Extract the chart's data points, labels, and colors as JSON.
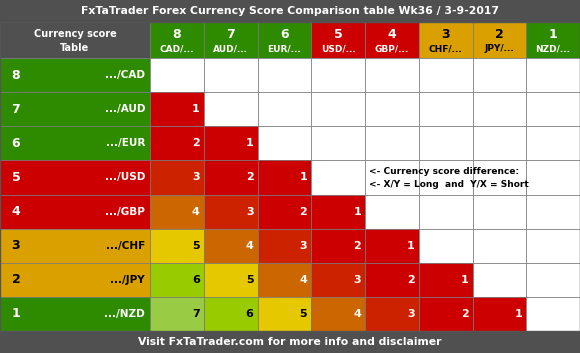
{
  "title": "FxTaTrader Forex Currency Score Comparison table Wk36 / 3-9-2017",
  "footer": "Visit FxTaTrader.com for more info and disclaimer",
  "col_scores": [
    8,
    7,
    6,
    5,
    4,
    3,
    2,
    1
  ],
  "col_currencies": [
    "CAD/...",
    "AUD/...",
    "EUR/...",
    "USD/...",
    "GBP/...",
    "CHF/...",
    "JPY/...",
    "NZD/..."
  ],
  "row_scores": [
    8,
    7,
    6,
    5,
    4,
    3,
    2,
    1
  ],
  "row_currencies": [
    ".../CAD",
    ".../AUD",
    ".../EUR",
    ".../USD",
    ".../GBP",
    ".../CHF",
    ".../JPY",
    ".../NZD"
  ],
  "score_bg": {
    "8": "#2e8b00",
    "7": "#2e8b00",
    "6": "#2e8b00",
    "5": "#cc0000",
    "4": "#cc0000",
    "3": "#daa000",
    "2": "#daa000",
    "1": "#2e8b00"
  },
  "score_text": {
    "8": "white",
    "7": "white",
    "6": "white",
    "5": "white",
    "4": "white",
    "3": "black",
    "2": "black",
    "1": "white"
  },
  "diff_colors": {
    "1": "#cc0000",
    "2": "#cc0000",
    "3": "#cc2200",
    "4": "#cc6600",
    "5": "#e6c800",
    "6": "#99cc00",
    "7": "#99cc44"
  },
  "diff_text_colors": {
    "1": "white",
    "2": "white",
    "3": "white",
    "4": "white",
    "5": "black",
    "6": "black",
    "7": "black"
  },
  "annotation_row": 4,
  "annotation_col": 4,
  "annotation_text1": "<- Currency score difference:",
  "annotation_text2": "<- X/Y = Long  and  Y/X = Short",
  "title_bg": "#505050",
  "header_bg": "#505050",
  "footer_bg": "#505050",
  "title_fontsize": 7.8,
  "footer_fontsize": 7.8,
  "header_score_fontsize": 9,
  "header_currency_fontsize": 6.5,
  "row_score_fontsize": 9,
  "row_currency_fontsize": 7.5,
  "cell_fontsize": 8,
  "annotation_fontsize": 6.5
}
